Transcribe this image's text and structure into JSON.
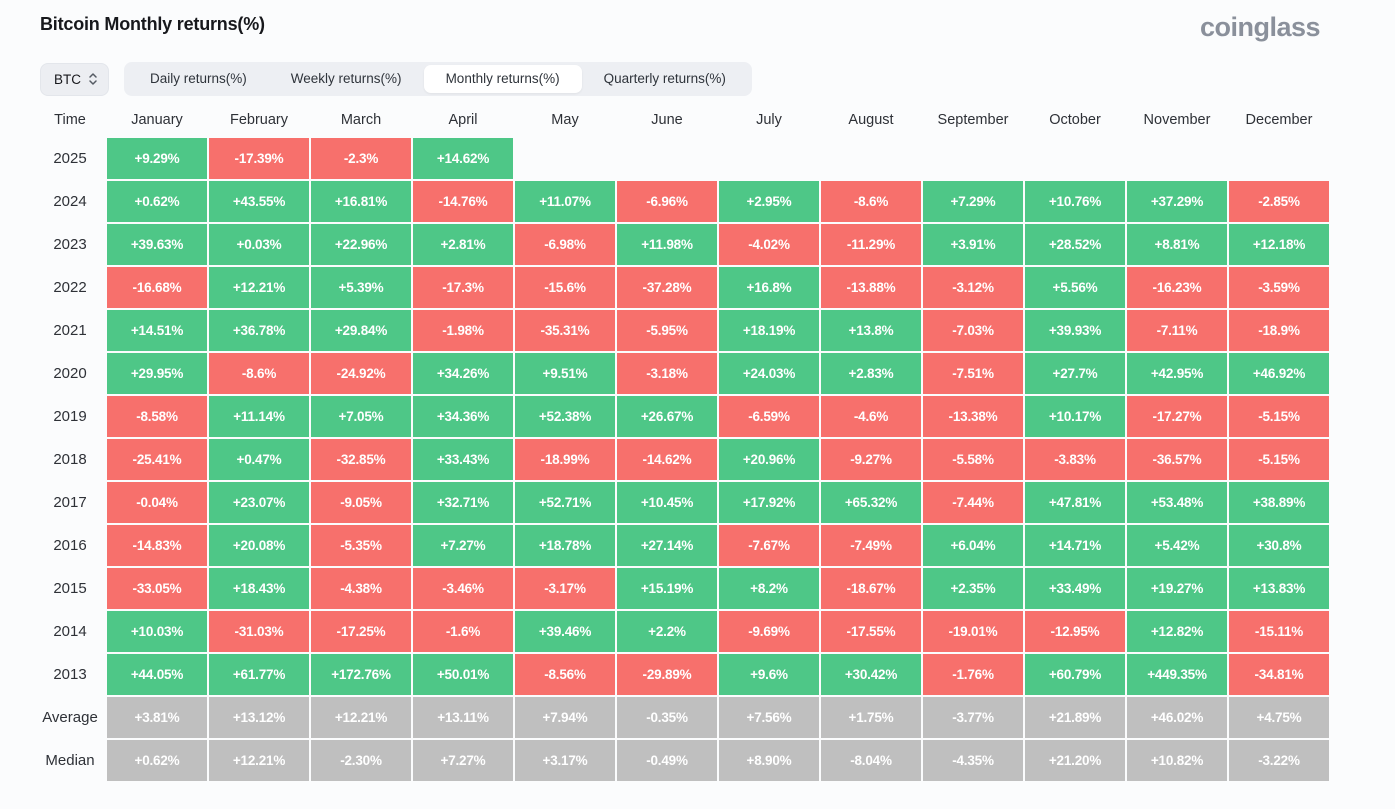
{
  "header": {
    "title": "Bitcoin Monthly returns(%)",
    "logo": "coinglass"
  },
  "controls": {
    "symbol": {
      "value": "BTC"
    },
    "tabs": [
      {
        "label": "Daily returns(%)",
        "active": false
      },
      {
        "label": "Weekly returns(%)",
        "active": false
      },
      {
        "label": "Monthly returns(%)",
        "active": true
      },
      {
        "label": "Quarterly returns(%)",
        "active": false
      }
    ]
  },
  "colors": {
    "positive": "#4ec787",
    "negative": "#f7706c",
    "summary": "#bfbfbf",
    "cell_text": "#ffffff"
  },
  "table": {
    "time_label": "Time",
    "months": [
      "January",
      "February",
      "March",
      "April",
      "May",
      "June",
      "July",
      "August",
      "September",
      "October",
      "November",
      "December"
    ],
    "rows": [
      {
        "label": "2025",
        "type": "year",
        "values": [
          "+9.29%",
          "-17.39%",
          "-2.3%",
          "+14.62%",
          "",
          "",
          "",
          "",
          "",
          "",
          "",
          ""
        ]
      },
      {
        "label": "2024",
        "type": "year",
        "values": [
          "+0.62%",
          "+43.55%",
          "+16.81%",
          "-14.76%",
          "+11.07%",
          "-6.96%",
          "+2.95%",
          "-8.6%",
          "+7.29%",
          "+10.76%",
          "+37.29%",
          "-2.85%"
        ]
      },
      {
        "label": "2023",
        "type": "year",
        "values": [
          "+39.63%",
          "+0.03%",
          "+22.96%",
          "+2.81%",
          "-6.98%",
          "+11.98%",
          "-4.02%",
          "-11.29%",
          "+3.91%",
          "+28.52%",
          "+8.81%",
          "+12.18%"
        ]
      },
      {
        "label": "2022",
        "type": "year",
        "values": [
          "-16.68%",
          "+12.21%",
          "+5.39%",
          "-17.3%",
          "-15.6%",
          "-37.28%",
          "+16.8%",
          "-13.88%",
          "-3.12%",
          "+5.56%",
          "-16.23%",
          "-3.59%"
        ]
      },
      {
        "label": "2021",
        "type": "year",
        "values": [
          "+14.51%",
          "+36.78%",
          "+29.84%",
          "-1.98%",
          "-35.31%",
          "-5.95%",
          "+18.19%",
          "+13.8%",
          "-7.03%",
          "+39.93%",
          "-7.11%",
          "-18.9%"
        ]
      },
      {
        "label": "2020",
        "type": "year",
        "values": [
          "+29.95%",
          "-8.6%",
          "-24.92%",
          "+34.26%",
          "+9.51%",
          "-3.18%",
          "+24.03%",
          "+2.83%",
          "-7.51%",
          "+27.7%",
          "+42.95%",
          "+46.92%"
        ]
      },
      {
        "label": "2019",
        "type": "year",
        "values": [
          "-8.58%",
          "+11.14%",
          "+7.05%",
          "+34.36%",
          "+52.38%",
          "+26.67%",
          "-6.59%",
          "-4.6%",
          "-13.38%",
          "+10.17%",
          "-17.27%",
          "-5.15%"
        ]
      },
      {
        "label": "2018",
        "type": "year",
        "values": [
          "-25.41%",
          "+0.47%",
          "-32.85%",
          "+33.43%",
          "-18.99%",
          "-14.62%",
          "+20.96%",
          "-9.27%",
          "-5.58%",
          "-3.83%",
          "-36.57%",
          "-5.15%"
        ]
      },
      {
        "label": "2017",
        "type": "year",
        "values": [
          "-0.04%",
          "+23.07%",
          "-9.05%",
          "+32.71%",
          "+52.71%",
          "+10.45%",
          "+17.92%",
          "+65.32%",
          "-7.44%",
          "+47.81%",
          "+53.48%",
          "+38.89%"
        ]
      },
      {
        "label": "2016",
        "type": "year",
        "values": [
          "-14.83%",
          "+20.08%",
          "-5.35%",
          "+7.27%",
          "+18.78%",
          "+27.14%",
          "-7.67%",
          "-7.49%",
          "+6.04%",
          "+14.71%",
          "+5.42%",
          "+30.8%"
        ]
      },
      {
        "label": "2015",
        "type": "year",
        "values": [
          "-33.05%",
          "+18.43%",
          "-4.38%",
          "-3.46%",
          "-3.17%",
          "+15.19%",
          "+8.2%",
          "-18.67%",
          "+2.35%",
          "+33.49%",
          "+19.27%",
          "+13.83%"
        ]
      },
      {
        "label": "2014",
        "type": "year",
        "values": [
          "+10.03%",
          "-31.03%",
          "-17.25%",
          "-1.6%",
          "+39.46%",
          "+2.2%",
          "-9.69%",
          "-17.55%",
          "-19.01%",
          "-12.95%",
          "+12.82%",
          "-15.11%"
        ]
      },
      {
        "label": "2013",
        "type": "year",
        "values": [
          "+44.05%",
          "+61.77%",
          "+172.76%",
          "+50.01%",
          "-8.56%",
          "-29.89%",
          "+9.6%",
          "+30.42%",
          "-1.76%",
          "+60.79%",
          "+449.35%",
          "-34.81%"
        ]
      },
      {
        "label": "Average",
        "type": "summary",
        "values": [
          "+3.81%",
          "+13.12%",
          "+12.21%",
          "+13.11%",
          "+7.94%",
          "-0.35%",
          "+7.56%",
          "+1.75%",
          "-3.77%",
          "+21.89%",
          "+46.02%",
          "+4.75%"
        ]
      },
      {
        "label": "Median",
        "type": "summary",
        "values": [
          "+0.62%",
          "+12.21%",
          "-2.30%",
          "+7.27%",
          "+3.17%",
          "-0.49%",
          "+8.90%",
          "-8.04%",
          "-4.35%",
          "+21.20%",
          "+10.82%",
          "-3.22%"
        ]
      }
    ]
  }
}
